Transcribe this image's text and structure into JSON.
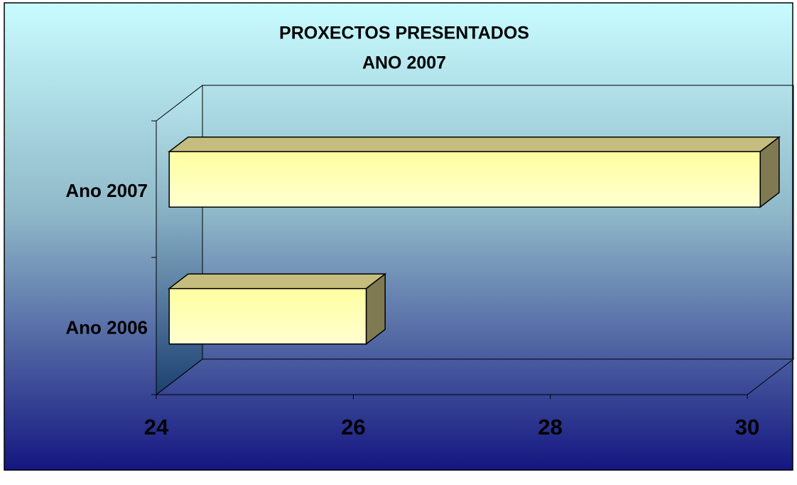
{
  "chart_data": {
    "type": "bar3d_horizontal",
    "title": [
      "PROXECTOS PRESENTADOS",
      "ANO 2007"
    ],
    "categories": [
      "Ano 2006",
      "Ano 2007"
    ],
    "values": [
      26,
      30
    ],
    "color": "#ffffb0",
    "xlim": [
      24,
      30
    ],
    "xticks": [
      24,
      26,
      28,
      30
    ],
    "grid": false
  }
}
